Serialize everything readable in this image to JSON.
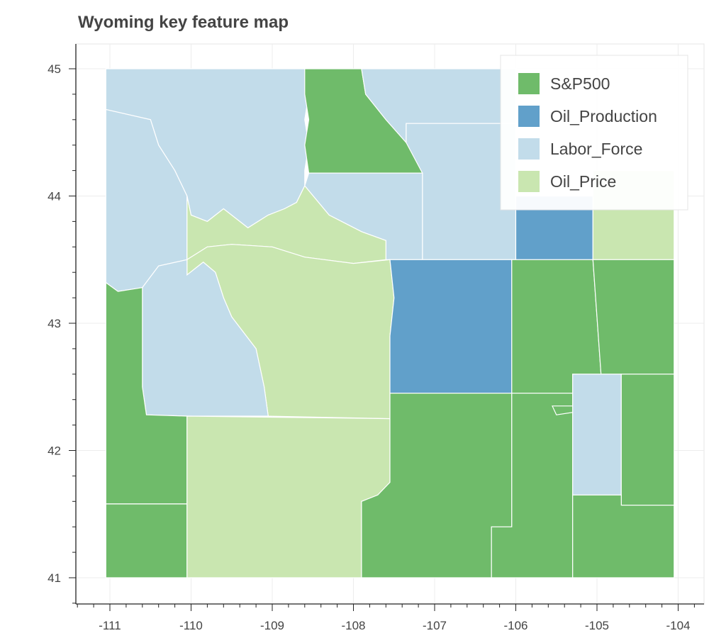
{
  "title": "Wyoming key feature map",
  "colors": {
    "S&P500": "#6fbb6a",
    "Oil_Production": "#61a0ca",
    "Labor_Force": "#c2dcea",
    "Oil_Price": "#c9e6b0"
  },
  "legend": {
    "placement": "top-right",
    "items": [
      {
        "label": "S&P500",
        "color_key": "S&P500"
      },
      {
        "label": "Oil_Production",
        "color_key": "Oil_Production"
      },
      {
        "label": "Labor_Force",
        "color_key": "Labor_Force"
      },
      {
        "label": "Oil_Price",
        "color_key": "Oil_Price"
      }
    ]
  },
  "axes": {
    "x_range": [
      -111.45,
      -103.7
    ],
    "y_range": [
      40.8,
      45.2
    ],
    "x_ticks": [
      -111,
      -110,
      -109,
      -108,
      -107,
      -106,
      -105,
      -104
    ],
    "y_ticks": [
      41,
      42,
      43,
      44,
      45
    ],
    "x_tick_labels": [
      "-111",
      "-110",
      "-109",
      "-108",
      "-107",
      "-106",
      "-105",
      "-104"
    ],
    "y_tick_labels": [
      "41",
      "42",
      "43",
      "44",
      "45"
    ]
  },
  "counties": [
    {
      "category": "Labor_Force",
      "coords": [
        [
          -111.05,
          45.0
        ],
        [
          -110.0,
          45.0
        ],
        [
          -109.3,
          45.0
        ],
        [
          -108.6,
          45.0
        ],
        [
          -108.55,
          44.8
        ],
        [
          -108.6,
          44.6
        ],
        [
          -108.55,
          44.4
        ],
        [
          -108.6,
          44.2
        ],
        [
          -108.6,
          44.08
        ],
        [
          -108.7,
          43.95
        ],
        [
          -108.85,
          43.9
        ],
        [
          -109.05,
          43.85
        ],
        [
          -109.3,
          43.75
        ],
        [
          -109.6,
          43.9
        ],
        [
          -109.8,
          43.8
        ],
        [
          -110.0,
          43.85
        ],
        [
          -110.05,
          44.0
        ],
        [
          -110.2,
          44.2
        ],
        [
          -110.4,
          44.4
        ],
        [
          -110.5,
          44.6
        ],
        [
          -111.05,
          44.68
        ]
      ]
    },
    {
      "category": "Labor_Force",
      "coords": [
        [
          -111.05,
          44.68
        ],
        [
          -110.5,
          44.6
        ],
        [
          -110.4,
          44.4
        ],
        [
          -110.2,
          44.2
        ],
        [
          -110.05,
          44.0
        ],
        [
          -110.05,
          43.5
        ],
        [
          -110.4,
          43.45
        ],
        [
          -110.6,
          43.28
        ],
        [
          -110.9,
          43.25
        ],
        [
          -111.05,
          43.32
        ]
      ]
    },
    {
      "category": "S&P500",
      "coords": [
        [
          -108.6,
          45.0
        ],
        [
          -107.9,
          45.0
        ],
        [
          -107.85,
          44.8
        ],
        [
          -107.6,
          44.6
        ],
        [
          -107.35,
          44.42
        ],
        [
          -107.15,
          44.25
        ],
        [
          -107.15,
          44.18
        ],
        [
          -108.55,
          44.18
        ],
        [
          -108.6,
          44.4
        ],
        [
          -108.55,
          44.6
        ],
        [
          -108.6,
          44.8
        ]
      ]
    },
    {
      "category": "Labor_Force",
      "coords": [
        [
          -107.9,
          45.0
        ],
        [
          -106.0,
          45.0
        ],
        [
          -106.0,
          44.57
        ],
        [
          -107.35,
          44.57
        ],
        [
          -107.35,
          44.42
        ],
        [
          -107.6,
          44.6
        ],
        [
          -107.85,
          44.8
        ]
      ]
    },
    {
      "category": "Labor_Force",
      "coords": [
        [
          -108.55,
          44.18
        ],
        [
          -107.15,
          44.18
        ],
        [
          -107.35,
          44.42
        ],
        [
          -107.35,
          44.57
        ],
        [
          -106.0,
          44.57
        ],
        [
          -106.0,
          43.5
        ],
        [
          -107.15,
          43.5
        ],
        [
          -107.15,
          44.18
        ]
      ]
    },
    {
      "category": "Labor_Force",
      "coords": [
        [
          -108.55,
          44.18
        ],
        [
          -107.15,
          44.18
        ],
        [
          -107.15,
          43.5
        ],
        [
          -107.6,
          43.5
        ],
        [
          -107.6,
          43.65
        ],
        [
          -107.9,
          43.72
        ],
        [
          -108.3,
          43.85
        ],
        [
          -108.6,
          44.08
        ]
      ]
    },
    {
      "category": "Oil_Price",
      "coords": [
        [
          -110.05,
          44.0
        ],
        [
          -110.0,
          43.85
        ],
        [
          -109.8,
          43.8
        ],
        [
          -109.6,
          43.9
        ],
        [
          -109.3,
          43.75
        ],
        [
          -109.05,
          43.85
        ],
        [
          -108.85,
          43.9
        ],
        [
          -108.7,
          43.95
        ],
        [
          -108.6,
          44.08
        ],
        [
          -108.3,
          43.85
        ],
        [
          -107.9,
          43.72
        ],
        [
          -107.6,
          43.65
        ],
        [
          -107.6,
          43.5
        ],
        [
          -108.0,
          43.47
        ],
        [
          -108.6,
          43.52
        ],
        [
          -109.0,
          43.6
        ],
        [
          -109.5,
          43.62
        ],
        [
          -109.8,
          43.6
        ],
        [
          -110.05,
          43.5
        ]
      ]
    },
    {
      "category": "Oil_Production",
      "coords": [
        [
          -106.0,
          43.5
        ],
        [
          -106.0,
          44.0
        ],
        [
          -105.05,
          44.0
        ],
        [
          -105.05,
          43.5
        ]
      ]
    },
    {
      "category": "Oil_Price",
      "coords": [
        [
          -105.05,
          43.5
        ],
        [
          -105.05,
          44.2
        ],
        [
          -104.05,
          44.2
        ],
        [
          -104.05,
          43.5
        ]
      ]
    },
    {
      "category": "Oil_Price",
      "coords": [
        [
          -110.05,
          43.5
        ],
        [
          -109.8,
          43.6
        ],
        [
          -109.5,
          43.62
        ],
        [
          -109.0,
          43.6
        ],
        [
          -108.6,
          43.52
        ],
        [
          -108.0,
          43.47
        ],
        [
          -107.55,
          43.5
        ],
        [
          -107.5,
          43.2
        ],
        [
          -107.55,
          42.9
        ],
        [
          -107.55,
          42.5
        ],
        [
          -107.55,
          42.25
        ],
        [
          -109.05,
          42.27
        ],
        [
          -109.1,
          42.5
        ],
        [
          -109.2,
          42.8
        ],
        [
          -109.5,
          43.05
        ],
        [
          -109.6,
          43.2
        ],
        [
          -109.7,
          43.4
        ],
        [
          -109.85,
          43.48
        ],
        [
          -110.05,
          43.38
        ]
      ]
    },
    {
      "category": "Labor_Force",
      "coords": [
        [
          -110.05,
          43.38
        ],
        [
          -109.85,
          43.48
        ],
        [
          -109.7,
          43.4
        ],
        [
          -109.6,
          43.2
        ],
        [
          -109.5,
          43.05
        ],
        [
          -109.2,
          42.8
        ],
        [
          -109.1,
          42.5
        ],
        [
          -109.05,
          42.27
        ],
        [
          -110.05,
          42.27
        ],
        [
          -110.55,
          42.28
        ],
        [
          -110.6,
          42.5
        ],
        [
          -110.6,
          42.9
        ],
        [
          -110.6,
          43.28
        ],
        [
          -110.4,
          43.45
        ],
        [
          -110.05,
          43.5
        ]
      ]
    },
    {
      "category": "S&P500",
      "coords": [
        [
          -111.05,
          43.32
        ],
        [
          -110.9,
          43.25
        ],
        [
          -110.6,
          43.28
        ],
        [
          -110.6,
          42.9
        ],
        [
          -110.6,
          42.5
        ],
        [
          -110.55,
          42.28
        ],
        [
          -110.05,
          42.27
        ],
        [
          -110.05,
          41.58
        ],
        [
          -111.05,
          41.58
        ]
      ]
    },
    {
      "category": "S&P500",
      "coords": [
        [
          -111.05,
          41.58
        ],
        [
          -110.05,
          41.58
        ],
        [
          -110.05,
          41.0
        ],
        [
          -111.05,
          41.0
        ]
      ]
    },
    {
      "category": "Oil_Price",
      "coords": [
        [
          -110.05,
          42.27
        ],
        [
          -107.55,
          42.25
        ],
        [
          -107.55,
          41.75
        ],
        [
          -107.7,
          41.65
        ],
        [
          -107.9,
          41.6
        ],
        [
          -107.9,
          41.0
        ],
        [
          -110.05,
          41.0
        ]
      ]
    },
    {
      "category": "Oil_Production",
      "coords": [
        [
          -107.55,
          43.5
        ],
        [
          -106.05,
          43.5
        ],
        [
          -106.05,
          42.45
        ],
        [
          -107.55,
          42.45
        ],
        [
          -107.55,
          42.9
        ],
        [
          -107.5,
          43.2
        ]
      ]
    },
    {
      "category": "S&P500",
      "coords": [
        [
          -106.05,
          43.5
        ],
        [
          -105.05,
          43.5
        ],
        [
          -105.05,
          43.5
        ],
        [
          -104.95,
          42.6
        ],
        [
          -105.3,
          42.6
        ],
        [
          -105.3,
          42.45
        ],
        [
          -106.05,
          42.45
        ]
      ]
    },
    {
      "category": "S&P500",
      "coords": [
        [
          -105.05,
          43.5
        ],
        [
          -104.05,
          43.5
        ],
        [
          -104.05,
          42.6
        ],
        [
          -104.95,
          42.6
        ]
      ]
    },
    {
      "category": "S&P500",
      "coords": [
        [
          -107.55,
          42.45
        ],
        [
          -106.05,
          42.45
        ],
        [
          -106.05,
          41.4
        ],
        [
          -106.3,
          41.4
        ],
        [
          -106.3,
          41.0
        ],
        [
          -107.9,
          41.0
        ],
        [
          -107.9,
          41.6
        ],
        [
          -107.7,
          41.65
        ],
        [
          -107.55,
          41.75
        ]
      ]
    },
    {
      "category": "S&P500",
      "coords": [
        [
          -106.05,
          42.45
        ],
        [
          -105.3,
          42.45
        ],
        [
          -105.3,
          42.3
        ],
        [
          -105.5,
          42.28
        ],
        [
          -105.55,
          42.35
        ],
        [
          -105.3,
          42.35
        ],
        [
          -105.3,
          41.0
        ],
        [
          -106.3,
          41.0
        ],
        [
          -106.3,
          41.4
        ],
        [
          -106.05,
          41.4
        ]
      ]
    },
    {
      "category": "Labor_Force",
      "coords": [
        [
          -105.3,
          42.6
        ],
        [
          -104.7,
          42.6
        ],
        [
          -104.7,
          41.65
        ],
        [
          -105.3,
          41.65
        ]
      ]
    },
    {
      "category": "S&P500",
      "coords": [
        [
          -104.7,
          42.6
        ],
        [
          -104.05,
          42.6
        ],
        [
          -104.05,
          41.57
        ],
        [
          -104.7,
          41.57
        ]
      ]
    },
    {
      "category": "S&P500",
      "coords": [
        [
          -105.3,
          41.65
        ],
        [
          -104.7,
          41.65
        ],
        [
          -104.7,
          41.57
        ],
        [
          -104.05,
          41.57
        ],
        [
          -104.05,
          41.0
        ],
        [
          -105.3,
          41.0
        ]
      ]
    }
  ]
}
